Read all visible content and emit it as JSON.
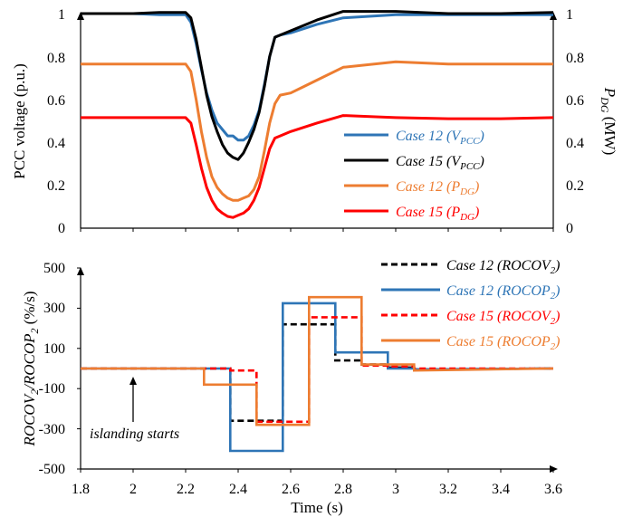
{
  "chart_data": [
    {
      "type": "line",
      "ylabel_left": "PCC voltage (p.u.)",
      "ylabel_right_main": "P",
      "ylabel_right_sub": "DG",
      "ylabel_right_unit": " (MW)",
      "xlim": [
        1.8,
        3.6
      ],
      "ylim_left": [
        0,
        1
      ],
      "ylim_right": [
        0,
        1
      ],
      "yticks_left": [
        "0",
        "0.2",
        "0.4",
        "0.6",
        "0.8",
        "1"
      ],
      "yticks_right": [
        "0",
        "0.2",
        "0.4",
        "0.6",
        "0.8",
        "1"
      ],
      "legend_position": "right",
      "series": [
        {
          "label_main": "Case 12 (V",
          "label_sub": "PCC",
          "label_end": ")",
          "color": "#2e75b6",
          "x": [
            1.8,
            2.0,
            2.1,
            2.2,
            2.22,
            2.24,
            2.26,
            2.28,
            2.3,
            2.32,
            2.34,
            2.36,
            2.38,
            2.4,
            2.42,
            2.44,
            2.46,
            2.48,
            2.5,
            2.52,
            2.54,
            2.56,
            2.6,
            2.7,
            2.8,
            3.0,
            3.2,
            3.4,
            3.6
          ],
          "y": [
            1.0,
            1.0,
            0.995,
            0.995,
            0.96,
            0.86,
            0.74,
            0.63,
            0.55,
            0.49,
            0.46,
            0.43,
            0.43,
            0.41,
            0.41,
            0.43,
            0.48,
            0.55,
            0.67,
            0.8,
            0.89,
            0.9,
            0.91,
            0.95,
            0.98,
            0.995,
            0.995,
            0.995,
            0.995
          ]
        },
        {
          "label_main": "Case 15 (V",
          "label_sub": "PCC",
          "label_end": ")",
          "color": "#000000",
          "x": [
            1.8,
            2.0,
            2.1,
            2.2,
            2.22,
            2.24,
            2.26,
            2.28,
            2.3,
            2.32,
            2.34,
            2.36,
            2.38,
            2.4,
            2.42,
            2.44,
            2.46,
            2.48,
            2.5,
            2.52,
            2.54,
            2.56,
            2.6,
            2.7,
            2.8,
            3.0,
            3.2,
            3.4,
            3.6
          ],
          "y": [
            1.0,
            1.0,
            1.005,
            1.005,
            0.98,
            0.88,
            0.75,
            0.62,
            0.52,
            0.45,
            0.39,
            0.35,
            0.33,
            0.32,
            0.35,
            0.4,
            0.46,
            0.54,
            0.66,
            0.8,
            0.89,
            0.9,
            0.92,
            0.97,
            1.01,
            1.01,
            1.0,
            1.0,
            1.005
          ]
        },
        {
          "label_main": "Case 12 (P",
          "label_sub": "DG",
          "label_end": ")",
          "color": "#ed7d31",
          "x": [
            1.8,
            2.0,
            2.1,
            2.2,
            2.22,
            2.24,
            2.26,
            2.28,
            2.3,
            2.32,
            2.34,
            2.36,
            2.38,
            2.4,
            2.42,
            2.44,
            2.46,
            2.48,
            2.5,
            2.52,
            2.54,
            2.56,
            2.6,
            2.65,
            2.7,
            2.8,
            3.0,
            3.2,
            3.4,
            3.6
          ],
          "y": [
            0.765,
            0.765,
            0.765,
            0.765,
            0.73,
            0.6,
            0.45,
            0.33,
            0.24,
            0.19,
            0.16,
            0.14,
            0.13,
            0.13,
            0.14,
            0.15,
            0.18,
            0.24,
            0.36,
            0.49,
            0.58,
            0.62,
            0.63,
            0.66,
            0.69,
            0.75,
            0.775,
            0.765,
            0.765,
            0.765
          ]
        },
        {
          "label_main": "Case 15 (P",
          "label_sub": "DG",
          "label_end": ")",
          "color": "#ff0000",
          "x": [
            1.8,
            2.0,
            2.1,
            2.2,
            2.22,
            2.24,
            2.26,
            2.28,
            2.3,
            2.32,
            2.34,
            2.36,
            2.38,
            2.4,
            2.42,
            2.44,
            2.46,
            2.48,
            2.5,
            2.52,
            2.54,
            2.56,
            2.6,
            2.7,
            2.8,
            3.0,
            3.2,
            3.4,
            3.6
          ],
          "y": [
            0.515,
            0.515,
            0.515,
            0.515,
            0.49,
            0.39,
            0.28,
            0.19,
            0.13,
            0.09,
            0.07,
            0.055,
            0.05,
            0.06,
            0.07,
            0.09,
            0.13,
            0.19,
            0.28,
            0.37,
            0.42,
            0.43,
            0.45,
            0.49,
            0.525,
            0.515,
            0.51,
            0.51,
            0.515
          ]
        }
      ]
    },
    {
      "type": "line",
      "ylabel_parts": [
        {
          "t": "ROCOV",
          "sub": false
        },
        {
          "t": "2",
          "sub": true
        },
        {
          "t": "/ROCOP",
          "sub": false
        },
        {
          "t": "2",
          "sub": true
        },
        {
          "t": " (%/s)",
          "sub": false,
          "upright": true
        }
      ],
      "xlabel": "Time (s)",
      "xlim": [
        1.8,
        3.6
      ],
      "ylim": [
        -500,
        500
      ],
      "xticks": [
        "1.8",
        "2",
        "2.2",
        "2.4",
        "2.6",
        "2.8",
        "3",
        "3.2",
        "3.4",
        "3.6"
      ],
      "yticks": [
        "-500",
        "-300",
        "-100",
        "100",
        "300",
        "500"
      ],
      "legend_position": "top-right",
      "annotation": "islanding starts",
      "annotation_arrow_x": 2.0,
      "series": [
        {
          "label_main": "Case 12 (ROCOV",
          "label_sub": "2",
          "label_end": ")",
          "color": "#000000",
          "dashed": true,
          "x": [
            1.8,
            2.37,
            2.37,
            2.47,
            2.47,
            2.57,
            2.57,
            2.67,
            2.67,
            2.77,
            2.77,
            2.87,
            2.87,
            2.97,
            2.97,
            3.07,
            3.07,
            3.6
          ],
          "y": [
            0,
            0,
            -260,
            -260,
            -260,
            -260,
            220,
            220,
            220,
            220,
            40,
            40,
            20,
            20,
            5,
            5,
            -5,
            0
          ]
        },
        {
          "label_main": "Case 12 (ROCOP",
          "label_sub": "2",
          "label_end": ")",
          "color": "#2e75b6",
          "dashed": false,
          "x": [
            1.8,
            2.37,
            2.37,
            2.47,
            2.47,
            2.57,
            2.57,
            2.67,
            2.67,
            2.77,
            2.77,
            2.87,
            2.87,
            2.97,
            2.97,
            3.07,
            3.07,
            3.6
          ],
          "y": [
            0,
            0,
            -410,
            -410,
            -410,
            -410,
            325,
            325,
            325,
            325,
            80,
            80,
            80,
            80,
            0,
            0,
            -5,
            0
          ]
        },
        {
          "label_main": "Case 15 (ROCOV",
          "label_sub": "2",
          "label_end": ")",
          "color": "#ff0000",
          "dashed": true,
          "x": [
            1.8,
            2.37,
            2.37,
            2.47,
            2.47,
            2.57,
            2.57,
            2.67,
            2.67,
            2.77,
            2.77,
            2.87,
            2.87,
            2.97,
            2.97,
            3.07,
            3.07,
            3.6
          ],
          "y": [
            0,
            0,
            -10,
            -10,
            -265,
            -265,
            -265,
            -265,
            255,
            255,
            255,
            255,
            15,
            15,
            10,
            10,
            0,
            0
          ]
        },
        {
          "label_main": "Case 15 (ROCOP",
          "label_sub": "2",
          "label_end": ")",
          "color": "#ed7d31",
          "dashed": false,
          "x": [
            1.8,
            2.27,
            2.27,
            2.47,
            2.47,
            2.67,
            2.67,
            2.87,
            2.87,
            3.07,
            3.07,
            3.6
          ],
          "y": [
            0,
            0,
            -80,
            -80,
            -280,
            -280,
            355,
            355,
            20,
            20,
            -10,
            0
          ]
        }
      ]
    }
  ],
  "panel1_xticks_count": 10
}
